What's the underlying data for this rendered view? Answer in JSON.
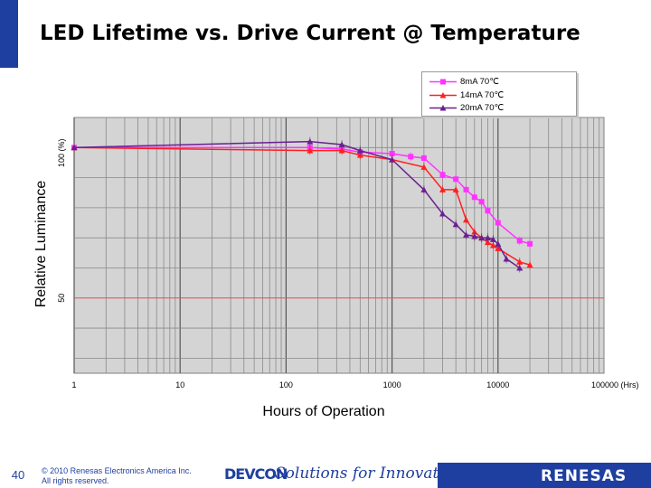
{
  "slide": {
    "page_number": "40",
    "copyright_line1": "© 2010 Renesas Electronics America Inc.",
    "copyright_line2": "All rights reserved.",
    "devcon_logo": "DEVCON",
    "tagline": "Solutions for Innovation",
    "renesas_logo": "RENESAS",
    "accent_color": "#1f3fa0"
  },
  "chart_data": {
    "type": "line",
    "title": "LED Lifetime vs. Drive Current @ Temperature",
    "xlabel": "Hours of Operation",
    "ylabel": "Relative Luminance",
    "x_scale": "log",
    "xlim": [
      1,
      100000
    ],
    "x_ticks": [
      "1",
      "10",
      "100",
      "1000",
      "10000",
      "100000 (Hrs)"
    ],
    "y_ticks": [
      "50",
      "100 (%)"
    ],
    "ylim": [
      25,
      110
    ],
    "grid": true,
    "reference_line_y": 50,
    "legend_position": "top-right",
    "series": [
      {
        "name": "8mA 70℃",
        "color": "#ff33ff",
        "marker": "square",
        "x": [
          1,
          168,
          336,
          500,
          1000,
          1500,
          2000,
          3000,
          4000,
          5000,
          6000,
          7000,
          8000,
          10000,
          16000,
          20000
        ],
        "y": [
          100,
          100,
          99.5,
          98.5,
          98,
          97,
          96.5,
          91,
          89.5,
          86,
          83.5,
          82,
          79,
          75,
          69,
          68
        ]
      },
      {
        "name": "14mA 70℃",
        "color": "#ff2020",
        "marker": "triangle",
        "x": [
          1,
          168,
          336,
          500,
          1000,
          2000,
          3000,
          4000,
          5000,
          6000,
          7000,
          8000,
          9000,
          10000,
          16000,
          20000
        ],
        "y": [
          100,
          99,
          99,
          97.5,
          96,
          93.5,
          86,
          86,
          76,
          72,
          70,
          68.5,
          67.5,
          66.5,
          62,
          61
        ]
      },
      {
        "name": "20mA 70℃",
        "color": "#6a2090",
        "marker": "triangle",
        "x": [
          1,
          168,
          336,
          500,
          1000,
          2000,
          3000,
          4000,
          5000,
          6000,
          7000,
          8000,
          9000,
          10000,
          12000,
          16000
        ],
        "y": [
          100,
          102,
          101,
          99,
          96,
          86,
          78,
          74.5,
          71,
          70.5,
          70,
          70,
          69.5,
          68,
          63,
          60
        ]
      }
    ]
  }
}
